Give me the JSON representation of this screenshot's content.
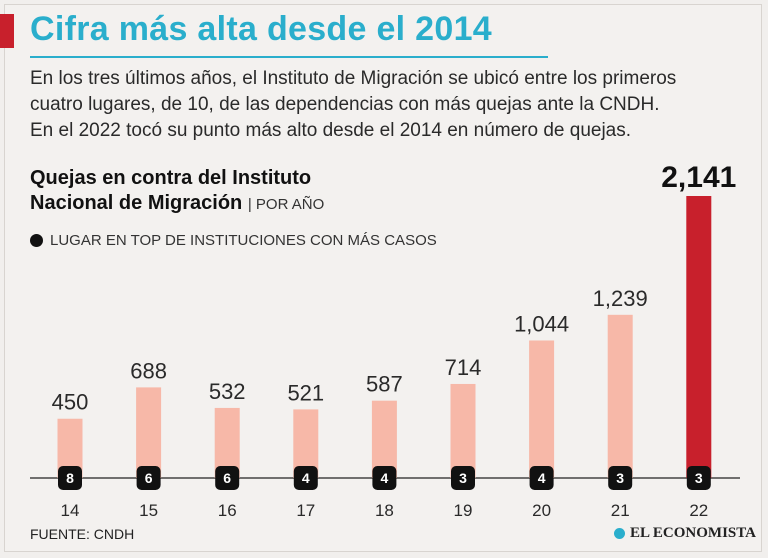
{
  "title": "Cifra más alta desde el 2014",
  "intro": [
    "En los tres últimos años, el Instituto de Migración se ubicó entre los primeros",
    "cuatro lugares, de 10, de las dependencias con más quejas ante la CNDH.",
    "En el 2022 tocó su punto más alto desde el 2014 en número de quejas."
  ],
  "subtitle": {
    "line1": "Quejas en contra del Instituto",
    "line2": "Nacional de Migración",
    "unit": "| POR AÑO"
  },
  "legend_label": "LUGAR EN TOP DE INSTITUCIONES CON MÁS CASOS",
  "source": "FUENTE: CNDH",
  "brand": "EL ECONOMISTA",
  "colors": {
    "title": "#2aaecc",
    "bar": "#f7b8a8",
    "highlight": "#c8202c",
    "badge": "#111111"
  },
  "chart_data": {
    "type": "bar",
    "title": "Quejas en contra del Instituto Nacional de Migración",
    "xlabel": "",
    "ylabel": "",
    "categories": [
      "14",
      "15",
      "16",
      "17",
      "18",
      "19",
      "20",
      "21",
      "22"
    ],
    "values": [
      450,
      688,
      532,
      521,
      587,
      714,
      1044,
      1239,
      2141
    ],
    "value_labels": [
      "450",
      "688",
      "532",
      "521",
      "587",
      "714",
      "1,044",
      "1,239",
      "2,141"
    ],
    "ranks": [
      "8",
      "6",
      "6",
      "4",
      "4",
      "3",
      "4",
      "3",
      "3"
    ],
    "highlight_index": 8,
    "ylim": [
      0,
      2141
    ]
  }
}
